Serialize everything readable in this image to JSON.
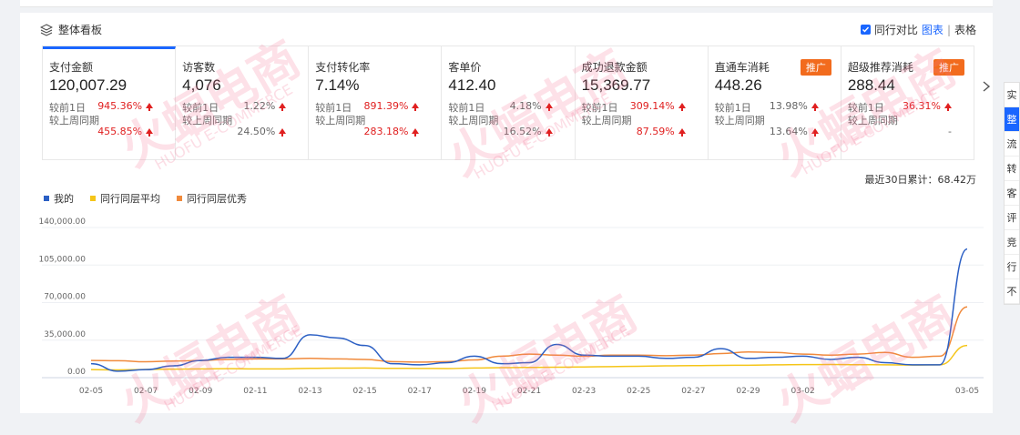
{
  "panel": {
    "title": "整体看板",
    "compare_label": "同行对比",
    "view_chart": "图表",
    "view_sep": "|",
    "view_table": "表格"
  },
  "cards": [
    {
      "label": "支付金额",
      "value": "120,007.29",
      "day_label": "较前1日",
      "day_pct": "945.36%",
      "day_dir": "up",
      "week_label": "较上周同期",
      "week_pct": "455.85%",
      "week_dir": "up",
      "active": true
    },
    {
      "label": "访客数",
      "value": "4,076",
      "day_label": "较前1日",
      "day_pct": "1.22%",
      "day_dir": "up-gray",
      "week_label": "较上周同期",
      "week_pct": "24.50%",
      "week_dir": "up-gray"
    },
    {
      "label": "支付转化率",
      "value": "7.14%",
      "day_label": "较前1日",
      "day_pct": "891.39%",
      "day_dir": "up",
      "week_label": "较上周同期",
      "week_pct": "283.18%",
      "week_dir": "up"
    },
    {
      "label": "客单价",
      "value": "412.40",
      "day_label": "较前1日",
      "day_pct": "4.18%",
      "day_dir": "up-gray",
      "week_label": "较上周同期",
      "week_pct": "16.52%",
      "week_dir": "up-gray"
    },
    {
      "label": "成功退款金额",
      "value": "15,369.77",
      "day_label": "较前1日",
      "day_pct": "309.14%",
      "day_dir": "up",
      "week_label": "较上周同期",
      "week_pct": "87.59%",
      "week_dir": "up"
    },
    {
      "label": "直通车消耗",
      "value": "448.26",
      "tag": "推广",
      "day_label": "较前1日",
      "day_pct": "13.98%",
      "day_dir": "up-gray",
      "week_label": "较上周同期",
      "week_pct": "13.64%",
      "week_dir": "up-gray"
    },
    {
      "label": "超级推荐消耗",
      "value": "288.44",
      "tag": "推广",
      "day_label": "较前1日",
      "day_pct": "36.31%",
      "day_dir": "up",
      "week_label": "较上周同期",
      "week_pct": "-",
      "week_dir": "none"
    }
  ],
  "next_icon": "chevron-right-icon",
  "total_label": "最近30日累计：68.42万",
  "side_tabs": [
    "实",
    "整",
    "流",
    "转",
    "客",
    "评",
    "竞",
    "行",
    "不"
  ],
  "watermark": {
    "text": "火蝠电商",
    "sub": "HUOFU E-COMMERCE"
  },
  "chart_data": {
    "type": "line",
    "series": [
      {
        "name": "我的",
        "color": "#2b5fc4",
        "values": [
          13000,
          6000,
          7500,
          11000,
          16000,
          19000,
          19000,
          18000,
          40000,
          37000,
          30000,
          13000,
          12000,
          14000,
          20000,
          13000,
          14000,
          31000,
          21000,
          20000,
          20000,
          18000,
          19000,
          27000,
          18000,
          19000,
          20000,
          17000,
          19000,
          14000,
          12000,
          12000,
          120000
        ]
      },
      {
        "name": "同行同层平均",
        "color": "#f5c518",
        "values": [
          7500,
          7200,
          7600,
          8000,
          8200,
          8400,
          8200,
          8200,
          8700,
          8900,
          9000,
          8700,
          8600,
          8500,
          9000,
          9300,
          9500,
          9800,
          10000,
          10300,
          10600,
          11000,
          11200,
          11500,
          11600,
          12000,
          12200,
          12300,
          12100,
          12000,
          11800,
          12000,
          30000
        ]
      },
      {
        "name": "同行同层优秀",
        "color": "#f08a3c",
        "values": [
          16000,
          15800,
          14800,
          15500,
          16000,
          17000,
          17500,
          17500,
          18000,
          17500,
          17000,
          15000,
          14500,
          15000,
          16500,
          20000,
          22000,
          21000,
          20000,
          21000,
          21000,
          20500,
          21000,
          22500,
          24000,
          23500,
          22000,
          21000,
          22000,
          23500,
          19000,
          20000,
          66000
        ]
      }
    ],
    "x_labels": [
      "02-05",
      "02-07",
      "02-09",
      "02-11",
      "02-13",
      "02-15",
      "02-17",
      "02-19",
      "02-21",
      "02-23",
      "02-25",
      "02-27",
      "02-29",
      "03-02",
      "03-05"
    ],
    "y_ticks": [
      "140,000.00",
      "105,000.00",
      "70,000.00",
      "35,000.00",
      "0.00"
    ],
    "ylim": [
      0,
      140000
    ]
  }
}
